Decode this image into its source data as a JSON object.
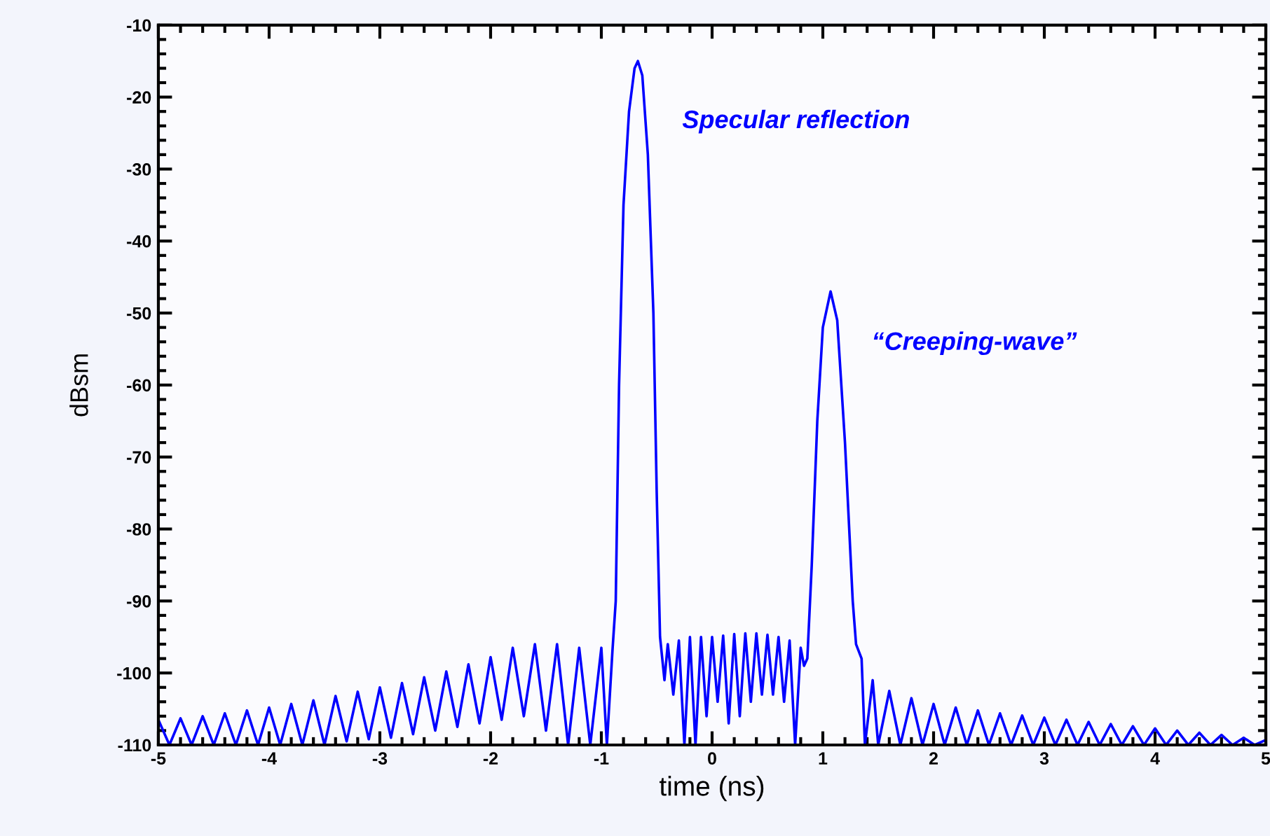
{
  "chart_data": {
    "type": "line",
    "xlabel": "time (ns)",
    "ylabel": "dBsm",
    "xlim": [
      -5,
      5
    ],
    "xticks": [
      -5,
      -4,
      -3,
      -2,
      -1,
      0,
      1,
      2,
      3,
      4,
      5
    ],
    "ylim": [
      -110,
      -10
    ],
    "yticks": [
      -110,
      -100,
      -90,
      -80,
      -70,
      -60,
      -50,
      -40,
      -30,
      -20,
      -10
    ],
    "grid": false,
    "legend": false,
    "marker": "none",
    "line_style": "solid",
    "annotations": [
      "Specular reflection",
      "“Creeping-wave”"
    ],
    "series": [
      {
        "color": "#0000ff",
        "x": [
          -5.0,
          -4.9,
          -4.8,
          -4.7,
          -4.6,
          -4.5,
          -4.4,
          -4.3,
          -4.2,
          -4.1,
          -4.0,
          -3.9,
          -3.8,
          -3.7,
          -3.6,
          -3.5,
          -3.4,
          -3.3,
          -3.2,
          -3.1,
          -3.0,
          -2.9,
          -2.8,
          -2.7,
          -2.6,
          -2.5,
          -2.4,
          -2.3,
          -2.2,
          -2.1,
          -2.0,
          -1.9,
          -1.8,
          -1.7,
          -1.6,
          -1.5,
          -1.4,
          -1.3,
          -1.2,
          -1.1,
          -1.0,
          -0.95,
          -0.9,
          -0.87,
          -0.84,
          -0.8,
          -0.75,
          -0.7,
          -0.67,
          -0.63,
          -0.58,
          -0.53,
          -0.5,
          -0.47,
          -0.43,
          -0.4,
          -0.35,
          -0.3,
          -0.25,
          -0.2,
          -0.15,
          -0.1,
          -0.05,
          0.0,
          0.05,
          0.1,
          0.15,
          0.2,
          0.25,
          0.3,
          0.35,
          0.4,
          0.45,
          0.5,
          0.55,
          0.6,
          0.65,
          0.7,
          0.75,
          0.8,
          0.83,
          0.86,
          0.9,
          0.95,
          1.0,
          1.07,
          1.13,
          1.2,
          1.27,
          1.3,
          1.35,
          1.38,
          1.45,
          1.5,
          1.6,
          1.7,
          1.8,
          1.9,
          2.0,
          2.1,
          2.2,
          2.3,
          2.4,
          2.5,
          2.6,
          2.7,
          2.8,
          2.9,
          3.0,
          3.1,
          3.2,
          3.3,
          3.4,
          3.5,
          3.6,
          3.7,
          3.8,
          3.9,
          4.0,
          4.1,
          4.2,
          4.3,
          4.4,
          4.5,
          4.6,
          4.7,
          4.8,
          4.9,
          5.0
        ],
        "values": [
          -106.5,
          -110,
          -106.3,
          -110,
          -106,
          -110,
          -105.6,
          -110,
          -105.2,
          -110,
          -104.8,
          -110,
          -104.3,
          -110,
          -103.8,
          -110,
          -103.2,
          -109.5,
          -102.6,
          -109.2,
          -102,
          -109,
          -101.4,
          -108.5,
          -100.6,
          -108,
          -99.8,
          -107.5,
          -98.8,
          -107,
          -97.8,
          -106.5,
          -96.5,
          -106,
          -96,
          -108,
          -96,
          -110,
          -96.5,
          -110,
          -96.5,
          -110,
          -97,
          -90,
          -60,
          -35,
          -22,
          -16,
          -15,
          -17,
          -28,
          -50,
          -75,
          -95,
          -101,
          -96,
          -103,
          -95.5,
          -110,
          -95,
          -110,
          -95,
          -106,
          -95,
          -104,
          -94.8,
          -107,
          -94.6,
          -106,
          -94.5,
          -104,
          -94.5,
          -103,
          -94.7,
          -103,
          -95,
          -104,
          -95.5,
          -110,
          -96.5,
          -99,
          -98,
          -85,
          -65,
          -52,
          -47,
          -51,
          -68,
          -90,
          -96,
          -98,
          -110,
          -101,
          -110,
          -102.5,
          -110,
          -103.5,
          -110,
          -104.3,
          -110,
          -104.8,
          -110,
          -105.2,
          -110,
          -105.6,
          -110,
          -105.9,
          -110,
          -106.2,
          -110,
          -106.5,
          -110,
          -106.8,
          -110,
          -107.1,
          -110,
          -107.4,
          -110,
          -107.7,
          -110,
          -108,
          -110,
          -108.3,
          -110,
          -108.6,
          -110,
          -109,
          -110,
          -109.3
        ]
      }
    ]
  }
}
